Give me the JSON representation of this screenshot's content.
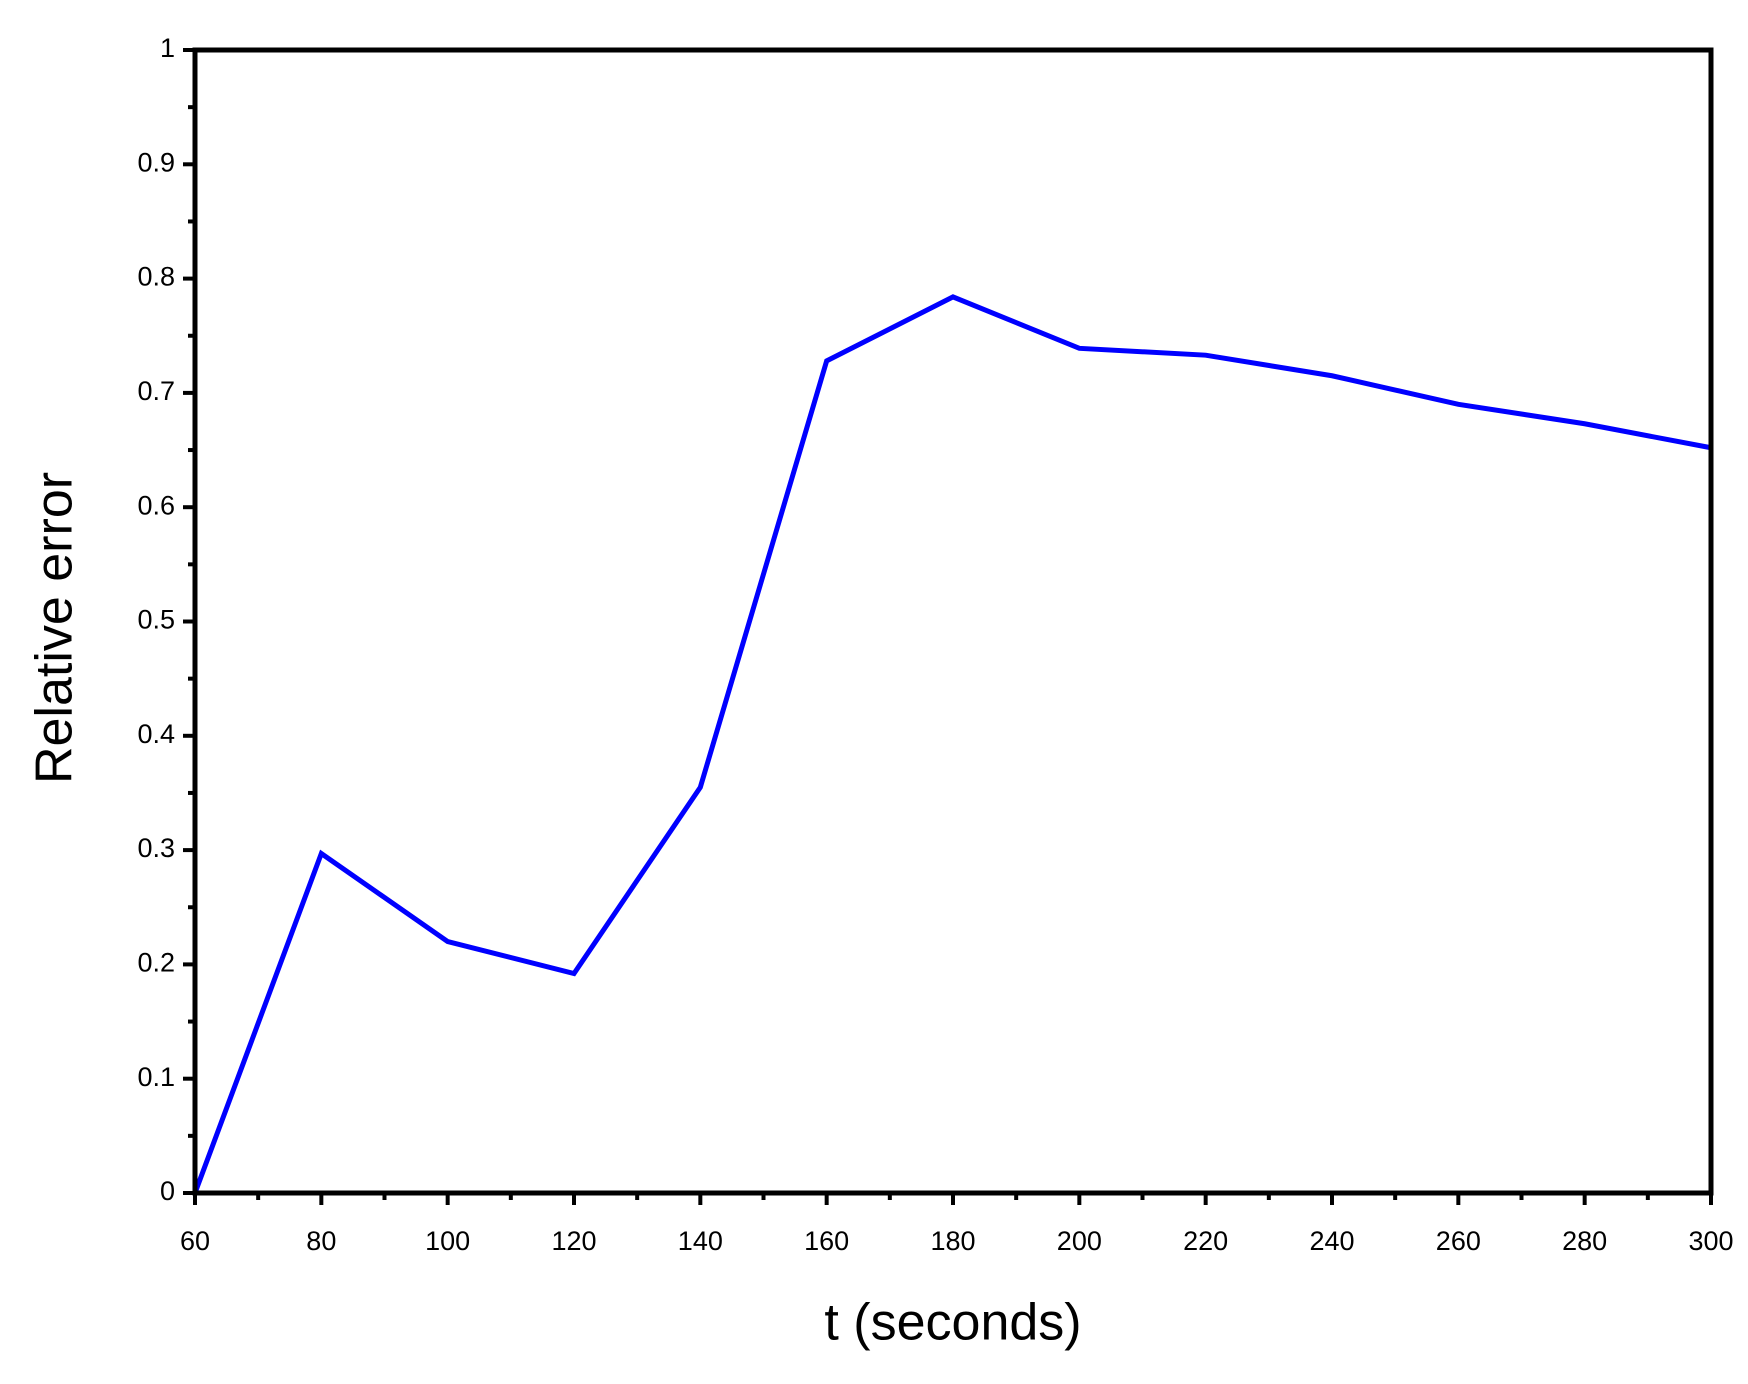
{
  "chart_data": {
    "type": "line",
    "x_label": "t (seconds)",
    "y_label": "Relative error",
    "x": [
      60,
      80,
      100,
      120,
      140,
      160,
      180,
      200,
      220,
      240,
      260,
      280,
      300
    ],
    "series": [
      {
        "color": "#0000ff",
        "values": [
          0,
          0.297,
          0.22,
          0.192,
          0.355,
          0.728,
          0.784,
          0.739,
          0.733,
          0.715,
          0.69,
          0.673,
          0.652
        ]
      }
    ],
    "xlim": [
      60,
      300
    ],
    "xticks": [
      60,
      80,
      100,
      120,
      140,
      160,
      180,
      200,
      220,
      240,
      260,
      280,
      300
    ],
    "ylim": [
      0,
      1
    ],
    "yticks": [
      0,
      0.1,
      0.2,
      0.3,
      0.4,
      0.5,
      0.6,
      0.7,
      0.8,
      0.9,
      1
    ],
    "grid": false
  }
}
